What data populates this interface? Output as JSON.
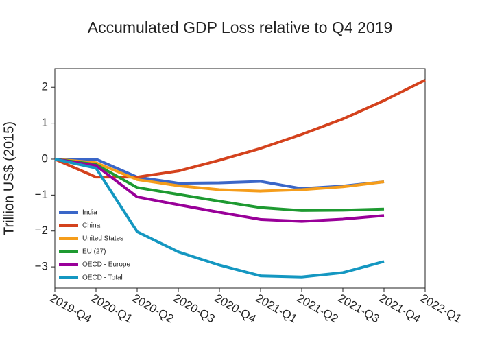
{
  "chart_data": {
    "type": "line",
    "title": "Accumulated GDP Loss relative to Q4 2019",
    "y_label": "Trillion US$ (2015)",
    "categories": [
      "2019-Q4",
      "2020-Q1",
      "2020-Q2",
      "2020-Q3",
      "2020-Q4",
      "2021-Q1",
      "2021-Q2",
      "2021-Q3",
      "2021-Q4",
      "2022-Q1"
    ],
    "series": [
      {
        "name": "India",
        "color": "#3a66c8",
        "values": [
          0,
          0,
          -0.5,
          -0.67,
          -0.66,
          -0.62,
          -0.82,
          -0.75,
          -0.63,
          null
        ]
      },
      {
        "name": "China",
        "color": "#d4421d",
        "values": [
          0,
          -0.5,
          -0.5,
          -0.33,
          -0.03,
          0.3,
          0.69,
          1.12,
          1.63,
          2.2
        ]
      },
      {
        "name": "United States",
        "color": "#f59d1b",
        "values": [
          0,
          -0.1,
          -0.57,
          -0.74,
          -0.85,
          -0.89,
          -0.85,
          -0.77,
          -0.63,
          null
        ]
      },
      {
        "name": "EU (27)",
        "color": "#1e9a31",
        "values": [
          0,
          -0.15,
          -0.79,
          -0.98,
          -1.17,
          -1.35,
          -1.43,
          -1.42,
          -1.39,
          null
        ]
      },
      {
        "name": "OECD - Europe",
        "color": "#990099",
        "values": [
          0,
          -0.18,
          -1.05,
          -1.27,
          -1.48,
          -1.68,
          -1.73,
          -1.67,
          -1.57,
          null
        ]
      },
      {
        "name": "OECD - Total",
        "color": "#1497c1",
        "values": [
          0,
          -0.25,
          -2.02,
          -2.58,
          -2.95,
          -3.25,
          -3.28,
          -3.16,
          -2.85,
          null
        ]
      }
    ],
    "ylim": [
      -3.59,
      2.52
    ],
    "yticks": [
      2,
      1,
      0,
      {
        "value": -1,
        "label": "−1"
      },
      {
        "value": -2,
        "label": "−2"
      },
      {
        "value": -3,
        "label": "−3"
      }
    ],
    "legend": "lower left"
  }
}
